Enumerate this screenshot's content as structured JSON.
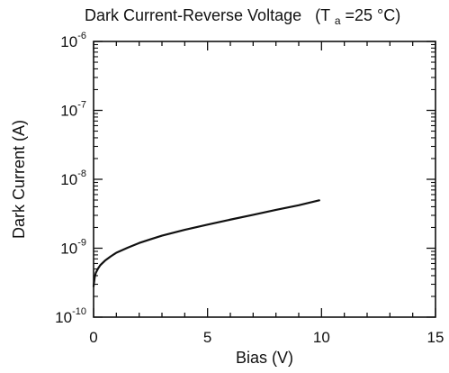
{
  "chart_data": {
    "type": "line",
    "title": "Dark Current-Reverse Voltage",
    "condition": {
      "prefix": "(T",
      "subscript": "a",
      "value": "=25 °C)"
    },
    "xlabel": "Bias (V)",
    "ylabel": "Dark Current (A)",
    "xlim": [
      0,
      15
    ],
    "ylim": [
      1e-10,
      1e-06
    ],
    "yscale": "log",
    "grid": false,
    "x_ticks": [
      {
        "value": 0,
        "label": "0"
      },
      {
        "value": 5,
        "label": "5"
      },
      {
        "value": 10,
        "label": "10"
      },
      {
        "value": 15,
        "label": "15"
      }
    ],
    "y_ticks": [
      {
        "value": 1e-10,
        "base": "10",
        "exp": "-10"
      },
      {
        "value": 1e-09,
        "base": "10",
        "exp": "-9"
      },
      {
        "value": 1e-08,
        "base": "10",
        "exp": "-8"
      },
      {
        "value": 1e-07,
        "base": "10",
        "exp": "-7"
      },
      {
        "value": 1e-06,
        "base": "10",
        "exp": "-6"
      }
    ],
    "series": [
      {
        "color": "#111111",
        "x": [
          0,
          0.05,
          0.1,
          0.2,
          0.3,
          0.5,
          0.75,
          1,
          1.5,
          2,
          2.5,
          3,
          4,
          5,
          6,
          7,
          8,
          9,
          9.9
        ],
        "y": [
          2.8e-10,
          3.8e-10,
          4.4e-10,
          5.1e-10,
          5.7e-10,
          6.6e-10,
          7.6e-10,
          8.6e-10,
          1.02e-09,
          1.19e-09,
          1.35e-09,
          1.52e-09,
          1.85e-09,
          2.2e-09,
          2.6e-09,
          3.05e-09,
          3.6e-09,
          4.2e-09,
          4.95e-09
        ]
      }
    ]
  }
}
